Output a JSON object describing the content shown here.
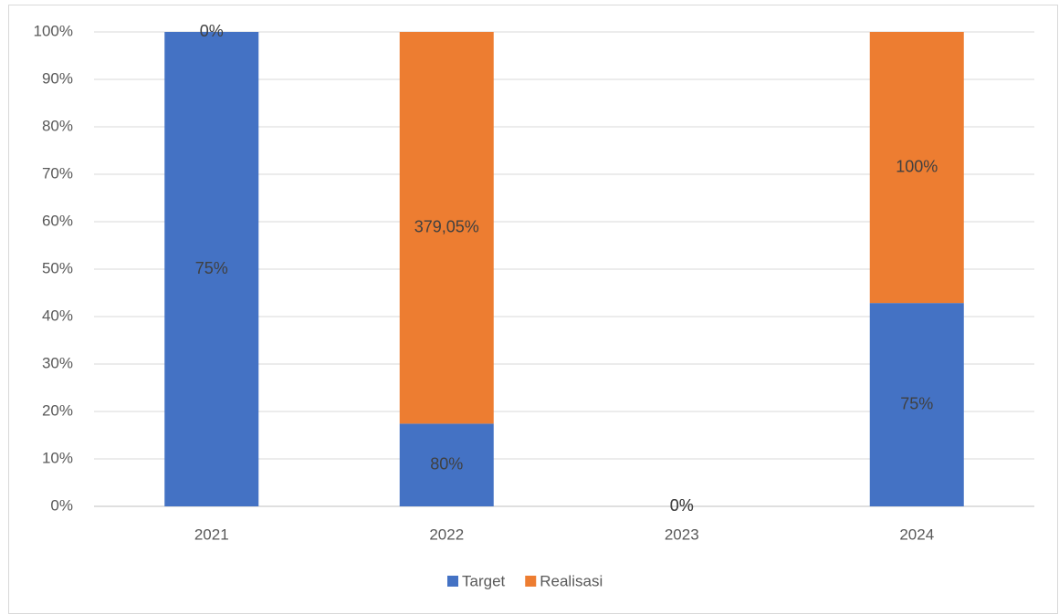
{
  "chart_data": {
    "type": "bar",
    "stacking": "percent",
    "categories": [
      "2021",
      "2022",
      "2023",
      "2024"
    ],
    "series": [
      {
        "name": "Target",
        "color": "#4472c4",
        "values": [
          75,
          80,
          0,
          75
        ],
        "value_labels": [
          "75%",
          "80%",
          "0%",
          "75%"
        ]
      },
      {
        "name": "Realisasi",
        "color": "#ed7d31",
        "values": [
          0,
          379.05,
          0,
          100
        ],
        "value_labels": [
          "0%",
          "379,05%",
          "0%",
          "100%"
        ]
      }
    ],
    "ylim": [
      0,
      100
    ],
    "yticks": [
      {
        "value": 0,
        "label": "0%"
      },
      {
        "value": 10,
        "label": "10%"
      },
      {
        "value": 20,
        "label": "20%"
      },
      {
        "value": 30,
        "label": "30%"
      },
      {
        "value": 40,
        "label": "40%"
      },
      {
        "value": 50,
        "label": "50%"
      },
      {
        "value": 60,
        "label": "60%"
      },
      {
        "value": 70,
        "label": "70%"
      },
      {
        "value": 80,
        "label": "80%"
      },
      {
        "value": 90,
        "label": "90%"
      },
      {
        "value": 100,
        "label": "100%"
      }
    ],
    "grid": true,
    "legend": "bottom"
  }
}
